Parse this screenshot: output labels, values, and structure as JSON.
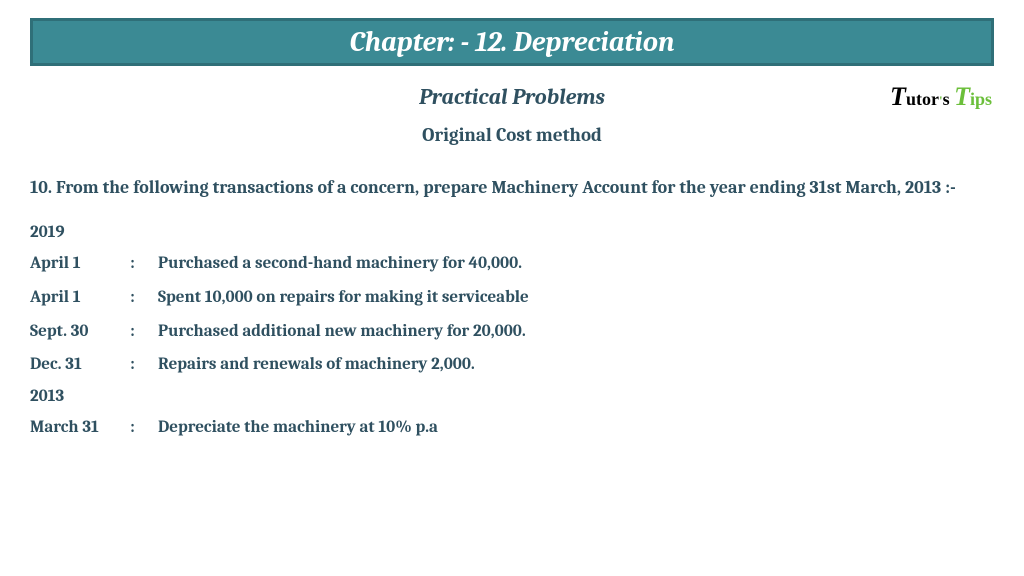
{
  "header": {
    "title": "Chapter: - 12. Depreciation",
    "bg_color": "#3b8a94",
    "border_color": "#2f6f78",
    "text_color": "#ffffff"
  },
  "subheader": "Practical Problems",
  "method": "Original Cost method",
  "question": "10. From the following transactions of a concern, prepare Machinery Account for the year ending 31st March, 2013 :-",
  "year1": "2019",
  "transactions1": [
    {
      "date": "April 1",
      "desc": "Purchased a second-hand machinery for 40,000."
    },
    {
      "date": "April 1",
      "desc": "Spent 10,000 on repairs for making it serviceable"
    },
    {
      "date": "Sept. 30",
      "desc": "Purchased additional new machinery for 20,000."
    },
    {
      "date": "Dec. 31",
      "desc": "Repairs and renewals of machinery 2,000."
    }
  ],
  "year2": "2013",
  "transactions2": [
    {
      "date": "March 31",
      "desc": "Depreciate the machinery at 10% p.a"
    }
  ],
  "logo": {
    "part1_big": "T",
    "part1_rest": "utor",
    "apostrophe": "'",
    "s": "s",
    "space": " ",
    "part2_big": "T",
    "part2_rest": "ips"
  },
  "colors": {
    "text": "#2f5060",
    "background": "#ffffff",
    "logo_green": "#6bbf3a",
    "logo_black": "#000000"
  }
}
